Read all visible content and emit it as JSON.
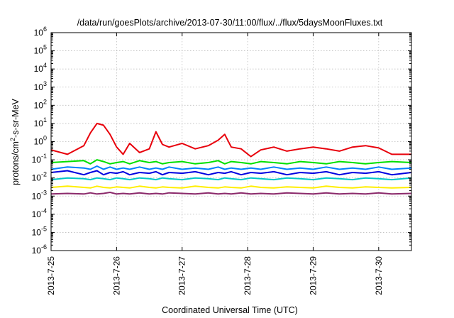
{
  "chart_data": {
    "type": "line",
    "title": "/data/run/goesPlots/archive/2013-07-30/11:00/flux/../flux/5daysMoonFluxes.txt",
    "xlabel": "Coordinated Universal Time (UTC)",
    "ylabel": {
      "pre": "protons/cm",
      "sup": "2",
      "post": "-s-sr-MeV"
    },
    "xlim": [
      "2013-07-25 00:00",
      "2013-07-30 12:00"
    ],
    "x_ticks": [
      "2013-7-25",
      "2013-7-26",
      "2013-7-27",
      "2013-7-28",
      "2013-7-29",
      "2013-7-30"
    ],
    "y_scale": "log",
    "ylim": [
      1e-06,
      1000000.0
    ],
    "y_ticks": [
      {
        "base": "10",
        "exp": "-6"
      },
      {
        "base": "10",
        "exp": "-5"
      },
      {
        "base": "10",
        "exp": "-4"
      },
      {
        "base": "10",
        "exp": "-3"
      },
      {
        "base": "10",
        "exp": "-2"
      },
      {
        "base": "10",
        "exp": "-1"
      },
      {
        "base": "10",
        "exp": "0"
      },
      {
        "base": "10",
        "exp": "1"
      },
      {
        "base": "10",
        "exp": "2"
      },
      {
        "base": "10",
        "exp": "3"
      },
      {
        "base": "10",
        "exp": "4"
      },
      {
        "base": "10",
        "exp": "5"
      },
      {
        "base": "10",
        "exp": "6"
      }
    ],
    "grid": true,
    "x_day_values": [
      0,
      0.25,
      0.5,
      0.6,
      0.7,
      0.8,
      0.9,
      1.0,
      1.1,
      1.2,
      1.35,
      1.5,
      1.6,
      1.7,
      1.8,
      2.0,
      2.2,
      2.4,
      2.55,
      2.65,
      2.75,
      2.9,
      3.05,
      3.2,
      3.4,
      3.6,
      3.8,
      4.0,
      4.2,
      4.4,
      4.6,
      4.8,
      5.0,
      5.2,
      5.5
    ],
    "series": [
      {
        "color": "#e8000b",
        "values": [
          0.35,
          0.2,
          0.6,
          3.0,
          10.0,
          8.0,
          2.5,
          0.5,
          0.2,
          0.8,
          0.25,
          0.4,
          3.5,
          0.7,
          0.5,
          0.8,
          0.4,
          0.6,
          1.2,
          2.5,
          0.5,
          0.4,
          0.15,
          0.35,
          0.5,
          0.3,
          0.4,
          0.5,
          0.4,
          0.3,
          0.5,
          0.6,
          0.45,
          0.2,
          0.2
        ]
      },
      {
        "color": "#00e000",
        "values": [
          0.07,
          0.08,
          0.09,
          0.06,
          0.1,
          0.08,
          0.06,
          0.07,
          0.08,
          0.06,
          0.09,
          0.07,
          0.08,
          0.06,
          0.07,
          0.08,
          0.06,
          0.07,
          0.09,
          0.06,
          0.08,
          0.07,
          0.06,
          0.08,
          0.07,
          0.06,
          0.08,
          0.07,
          0.06,
          0.08,
          0.07,
          0.06,
          0.07,
          0.08,
          0.07
        ]
      },
      {
        "color": "#0080ff",
        "values": [
          0.03,
          0.04,
          0.035,
          0.03,
          0.045,
          0.03,
          0.04,
          0.03,
          0.035,
          0.03,
          0.04,
          0.03,
          0.035,
          0.03,
          0.04,
          0.03,
          0.035,
          0.03,
          0.04,
          0.03,
          0.035,
          0.03,
          0.035,
          0.03,
          0.04,
          0.03,
          0.035,
          0.03,
          0.04,
          0.03,
          0.035,
          0.03,
          0.04,
          0.03,
          0.035
        ]
      },
      {
        "color": "#0000e0",
        "values": [
          0.02,
          0.025,
          0.015,
          0.02,
          0.025,
          0.015,
          0.02,
          0.018,
          0.022,
          0.015,
          0.02,
          0.018,
          0.022,
          0.015,
          0.02,
          0.018,
          0.022,
          0.015,
          0.02,
          0.018,
          0.022,
          0.015,
          0.02,
          0.018,
          0.022,
          0.015,
          0.02,
          0.018,
          0.022,
          0.015,
          0.02,
          0.018,
          0.022,
          0.015,
          0.02
        ]
      },
      {
        "color": "#00c8c8",
        "values": [
          0.008,
          0.01,
          0.009,
          0.008,
          0.01,
          0.009,
          0.008,
          0.01,
          0.009,
          0.008,
          0.01,
          0.009,
          0.008,
          0.01,
          0.009,
          0.008,
          0.01,
          0.009,
          0.008,
          0.01,
          0.009,
          0.008,
          0.01,
          0.009,
          0.008,
          0.01,
          0.009,
          0.008,
          0.01,
          0.009,
          0.008,
          0.01,
          0.009,
          0.008,
          0.01
        ]
      },
      {
        "color": "#ffee00",
        "values": [
          0.003,
          0.0035,
          0.003,
          0.0028,
          0.0035,
          0.003,
          0.0028,
          0.0032,
          0.003,
          0.0028,
          0.0035,
          0.003,
          0.0028,
          0.0032,
          0.003,
          0.0028,
          0.0035,
          0.003,
          0.0028,
          0.0032,
          0.003,
          0.0028,
          0.0035,
          0.003,
          0.0028,
          0.0032,
          0.003,
          0.0028,
          0.0035,
          0.003,
          0.0028,
          0.0032,
          0.003,
          0.0028,
          0.003
        ]
      },
      {
        "color": "#8b2a6b",
        "values": [
          0.0013,
          0.0014,
          0.0013,
          0.0015,
          0.0013,
          0.0014,
          0.0016,
          0.0013,
          0.0014,
          0.0013,
          0.0015,
          0.0013,
          0.0014,
          0.0013,
          0.0015,
          0.0014,
          0.0013,
          0.0015,
          0.0013,
          0.0014,
          0.0013,
          0.0015,
          0.0013,
          0.0014,
          0.0013,
          0.0015,
          0.0014,
          0.0013,
          0.0015,
          0.0013,
          0.0014,
          0.0013,
          0.0015,
          0.0013,
          0.0014
        ]
      }
    ]
  }
}
